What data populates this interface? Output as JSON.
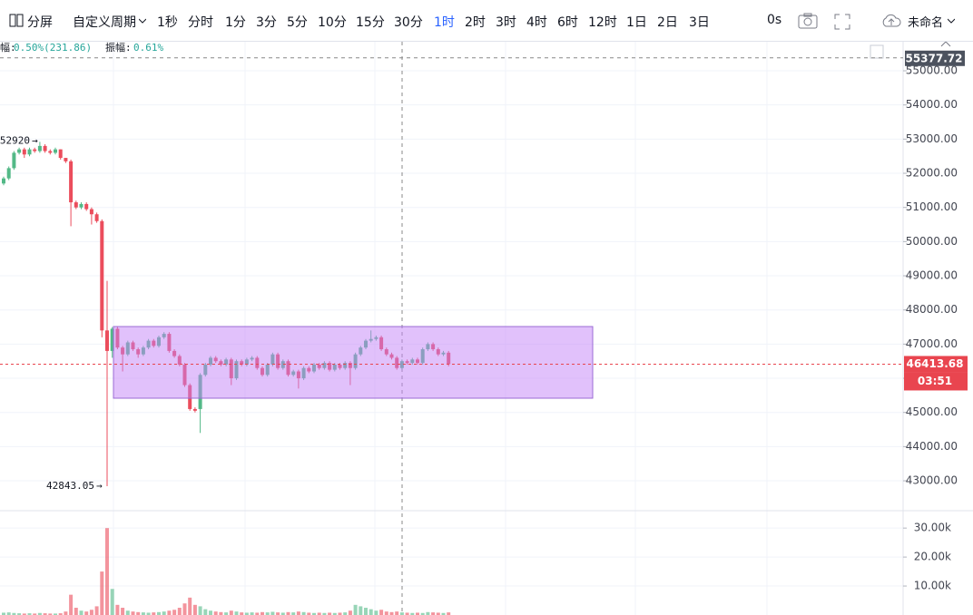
{
  "toolbar": {
    "split": "分屏",
    "custom_period": "自定义周期",
    "periods": [
      "1秒",
      "分时",
      "1分",
      "3分",
      "5分",
      "10分",
      "15分",
      "30分",
      "1时",
      "2时",
      "3时",
      "4时",
      "6时",
      "12时",
      "1日",
      "2日",
      "3日"
    ],
    "delay": "0s",
    "layout_name": "未命名"
  },
  "info": {
    "change_label": "幅:",
    "change_value": "0.50%(231.86)",
    "amplitude_label": "振幅:",
    "amplitude_value": "0.61%"
  },
  "chart_data": {
    "type": "candlestick",
    "up_color": "#53b987",
    "down_color": "#eb4d5c",
    "open": [
      51700,
      51850,
      52150,
      52600,
      52700,
      52550,
      52700,
      52650,
      52800,
      52650,
      52600,
      52700,
      52450,
      52350,
      51150,
      51000,
      51100,
      50950,
      50800,
      50600,
      47400,
      46800,
      47450,
      46900,
      46700,
      47050,
      46850,
      46700,
      46900,
      47100,
      46950,
      47200,
      47300,
      46800,
      46650,
      46400,
      45800,
      45100,
      45100,
      46100,
      46400,
      46600,
      46500,
      46400,
      46550,
      46000,
      46500,
      46400,
      46550,
      46600,
      46300,
      46100,
      46400,
      46700,
      46300,
      46500,
      46100,
      46200,
      46000,
      46300,
      46200,
      46400,
      46300,
      46450,
      46250,
      46400,
      46300,
      46450,
      46300,
      46700,
      46900,
      47100,
      47150,
      47200,
      46850,
      46700,
      46600,
      46300,
      46500,
      46450,
      46550,
      46450,
      46850,
      47000,
      46850,
      46700,
      46750
    ],
    "high": [
      51900,
      52200,
      52650,
      52750,
      52750,
      52750,
      52750,
      52920,
      52850,
      52700,
      52750,
      52700,
      52450,
      52400,
      51200,
      51150,
      51150,
      51000,
      50850,
      50650,
      48850,
      47500,
      47500,
      46950,
      47100,
      47100,
      46900,
      46950,
      47150,
      47150,
      47250,
      47350,
      47350,
      46850,
      46700,
      46450,
      45850,
      45150,
      46150,
      46450,
      46650,
      46650,
      46550,
      46600,
      46600,
      46550,
      46550,
      46600,
      46650,
      46650,
      46350,
      46450,
      46750,
      46750,
      46550,
      46550,
      46250,
      46250,
      46350,
      46350,
      46450,
      46450,
      46500,
      46500,
      46450,
      46450,
      46500,
      46500,
      46750,
      46950,
      47150,
      47400,
      47250,
      47250,
      46900,
      46750,
      46650,
      46550,
      46550,
      46600,
      46600,
      46900,
      47050,
      47050,
      46900,
      46800,
      46800
    ],
    "low": [
      51650,
      51800,
      52100,
      52550,
      52450,
      52500,
      52600,
      52600,
      52600,
      52550,
      52550,
      52400,
      52300,
      50450,
      50950,
      50950,
      50900,
      50500,
      50550,
      47200,
      42843.05,
      46600,
      46850,
      46200,
      46650,
      46800,
      46600,
      46650,
      46850,
      46900,
      46900,
      47150,
      46750,
      46600,
      46350,
      45750,
      45050,
      45000,
      44400,
      46050,
      46350,
      46450,
      46350,
      46350,
      45800,
      45950,
      46350,
      46350,
      46500,
      46250,
      46050,
      46050,
      46350,
      46250,
      46250,
      46050,
      46050,
      45700,
      45950,
      46150,
      46150,
      46250,
      46250,
      46200,
      46200,
      46250,
      46250,
      45800,
      46250,
      46650,
      46850,
      47050,
      47100,
      46800,
      46650,
      46550,
      46250,
      46250,
      46400,
      46400,
      46400,
      46400,
      46800,
      46800,
      46650,
      46650,
      46350
    ],
    "close": [
      51850,
      52150,
      52600,
      52700,
      52550,
      52700,
      52650,
      52800,
      52650,
      52600,
      52700,
      52450,
      52350,
      51150,
      51000,
      51100,
      50950,
      50800,
      50600,
      47400,
      46800,
      47450,
      46900,
      46700,
      47050,
      46850,
      46700,
      46900,
      47100,
      46950,
      47200,
      47300,
      46800,
      46650,
      46400,
      45800,
      45100,
      45050,
      46100,
      46400,
      46600,
      46500,
      46400,
      46550,
      46000,
      46500,
      46400,
      46550,
      46600,
      46300,
      46100,
      46400,
      46700,
      46300,
      46500,
      46100,
      46200,
      46000,
      46300,
      46200,
      46400,
      46300,
      46450,
      46250,
      46400,
      46300,
      46450,
      46300,
      46700,
      46900,
      47100,
      47150,
      47200,
      46850,
      46700,
      46600,
      46300,
      46500,
      46450,
      46550,
      46450,
      46850,
      47000,
      46850,
      46700,
      46750,
      46413.68
    ],
    "volume": [
      800,
      900,
      700,
      600,
      500,
      600,
      500,
      700,
      600,
      500,
      500,
      600,
      1200,
      7000,
      2500,
      1500,
      1200,
      1800,
      3000,
      15000,
      30000,
      9000,
      3500,
      2500,
      1500,
      1200,
      1000,
      900,
      800,
      900,
      1000,
      1200,
      1500,
      1800,
      2500,
      4000,
      6000,
      3500,
      3000,
      2000,
      1500,
      1200,
      1000,
      900,
      1500,
      1200,
      900,
      800,
      900,
      800,
      1000,
      900,
      1100,
      900,
      800,
      1000,
      900,
      1200,
      1000,
      800,
      700,
      800,
      700,
      800,
      700,
      800,
      900,
      1500,
      3500,
      3000,
      2500,
      2000,
      1500,
      1800,
      1200,
      1000,
      1200,
      900,
      800,
      700,
      800,
      700,
      1000,
      900,
      800,
      700,
      900
    ],
    "ylim": [
      42125,
      55850
    ],
    "yticks": [
      {
        "value": 43000,
        "label": "43000.00"
      },
      {
        "value": 44000,
        "label": "44000.00"
      },
      {
        "value": 45000,
        "label": "45000.00"
      },
      {
        "value": 46000,
        "label": "46000.00"
      },
      {
        "value": 47000,
        "label": "47000.00"
      },
      {
        "value": 48000,
        "label": "48000.00"
      },
      {
        "value": 49000,
        "label": "49000.00"
      },
      {
        "value": 50000,
        "label": "50000.00"
      },
      {
        "value": 51000,
        "label": "51000.00"
      },
      {
        "value": 52000,
        "label": "52000.00"
      },
      {
        "value": 53000,
        "label": "53000.00"
      },
      {
        "value": 54000,
        "label": "54000.00"
      },
      {
        "value": 55000,
        "label": "55000.00"
      }
    ],
    "volume_ylim": [
      0,
      36000
    ],
    "volume_yticks": [
      {
        "value": 10000,
        "label": "10.00k"
      },
      {
        "value": 20000,
        "label": "20.00k"
      },
      {
        "value": 30000,
        "label": "30.00k"
      }
    ],
    "crosshair_price": 55377.72,
    "countdown": "03:51",
    "grid": true
  }
}
